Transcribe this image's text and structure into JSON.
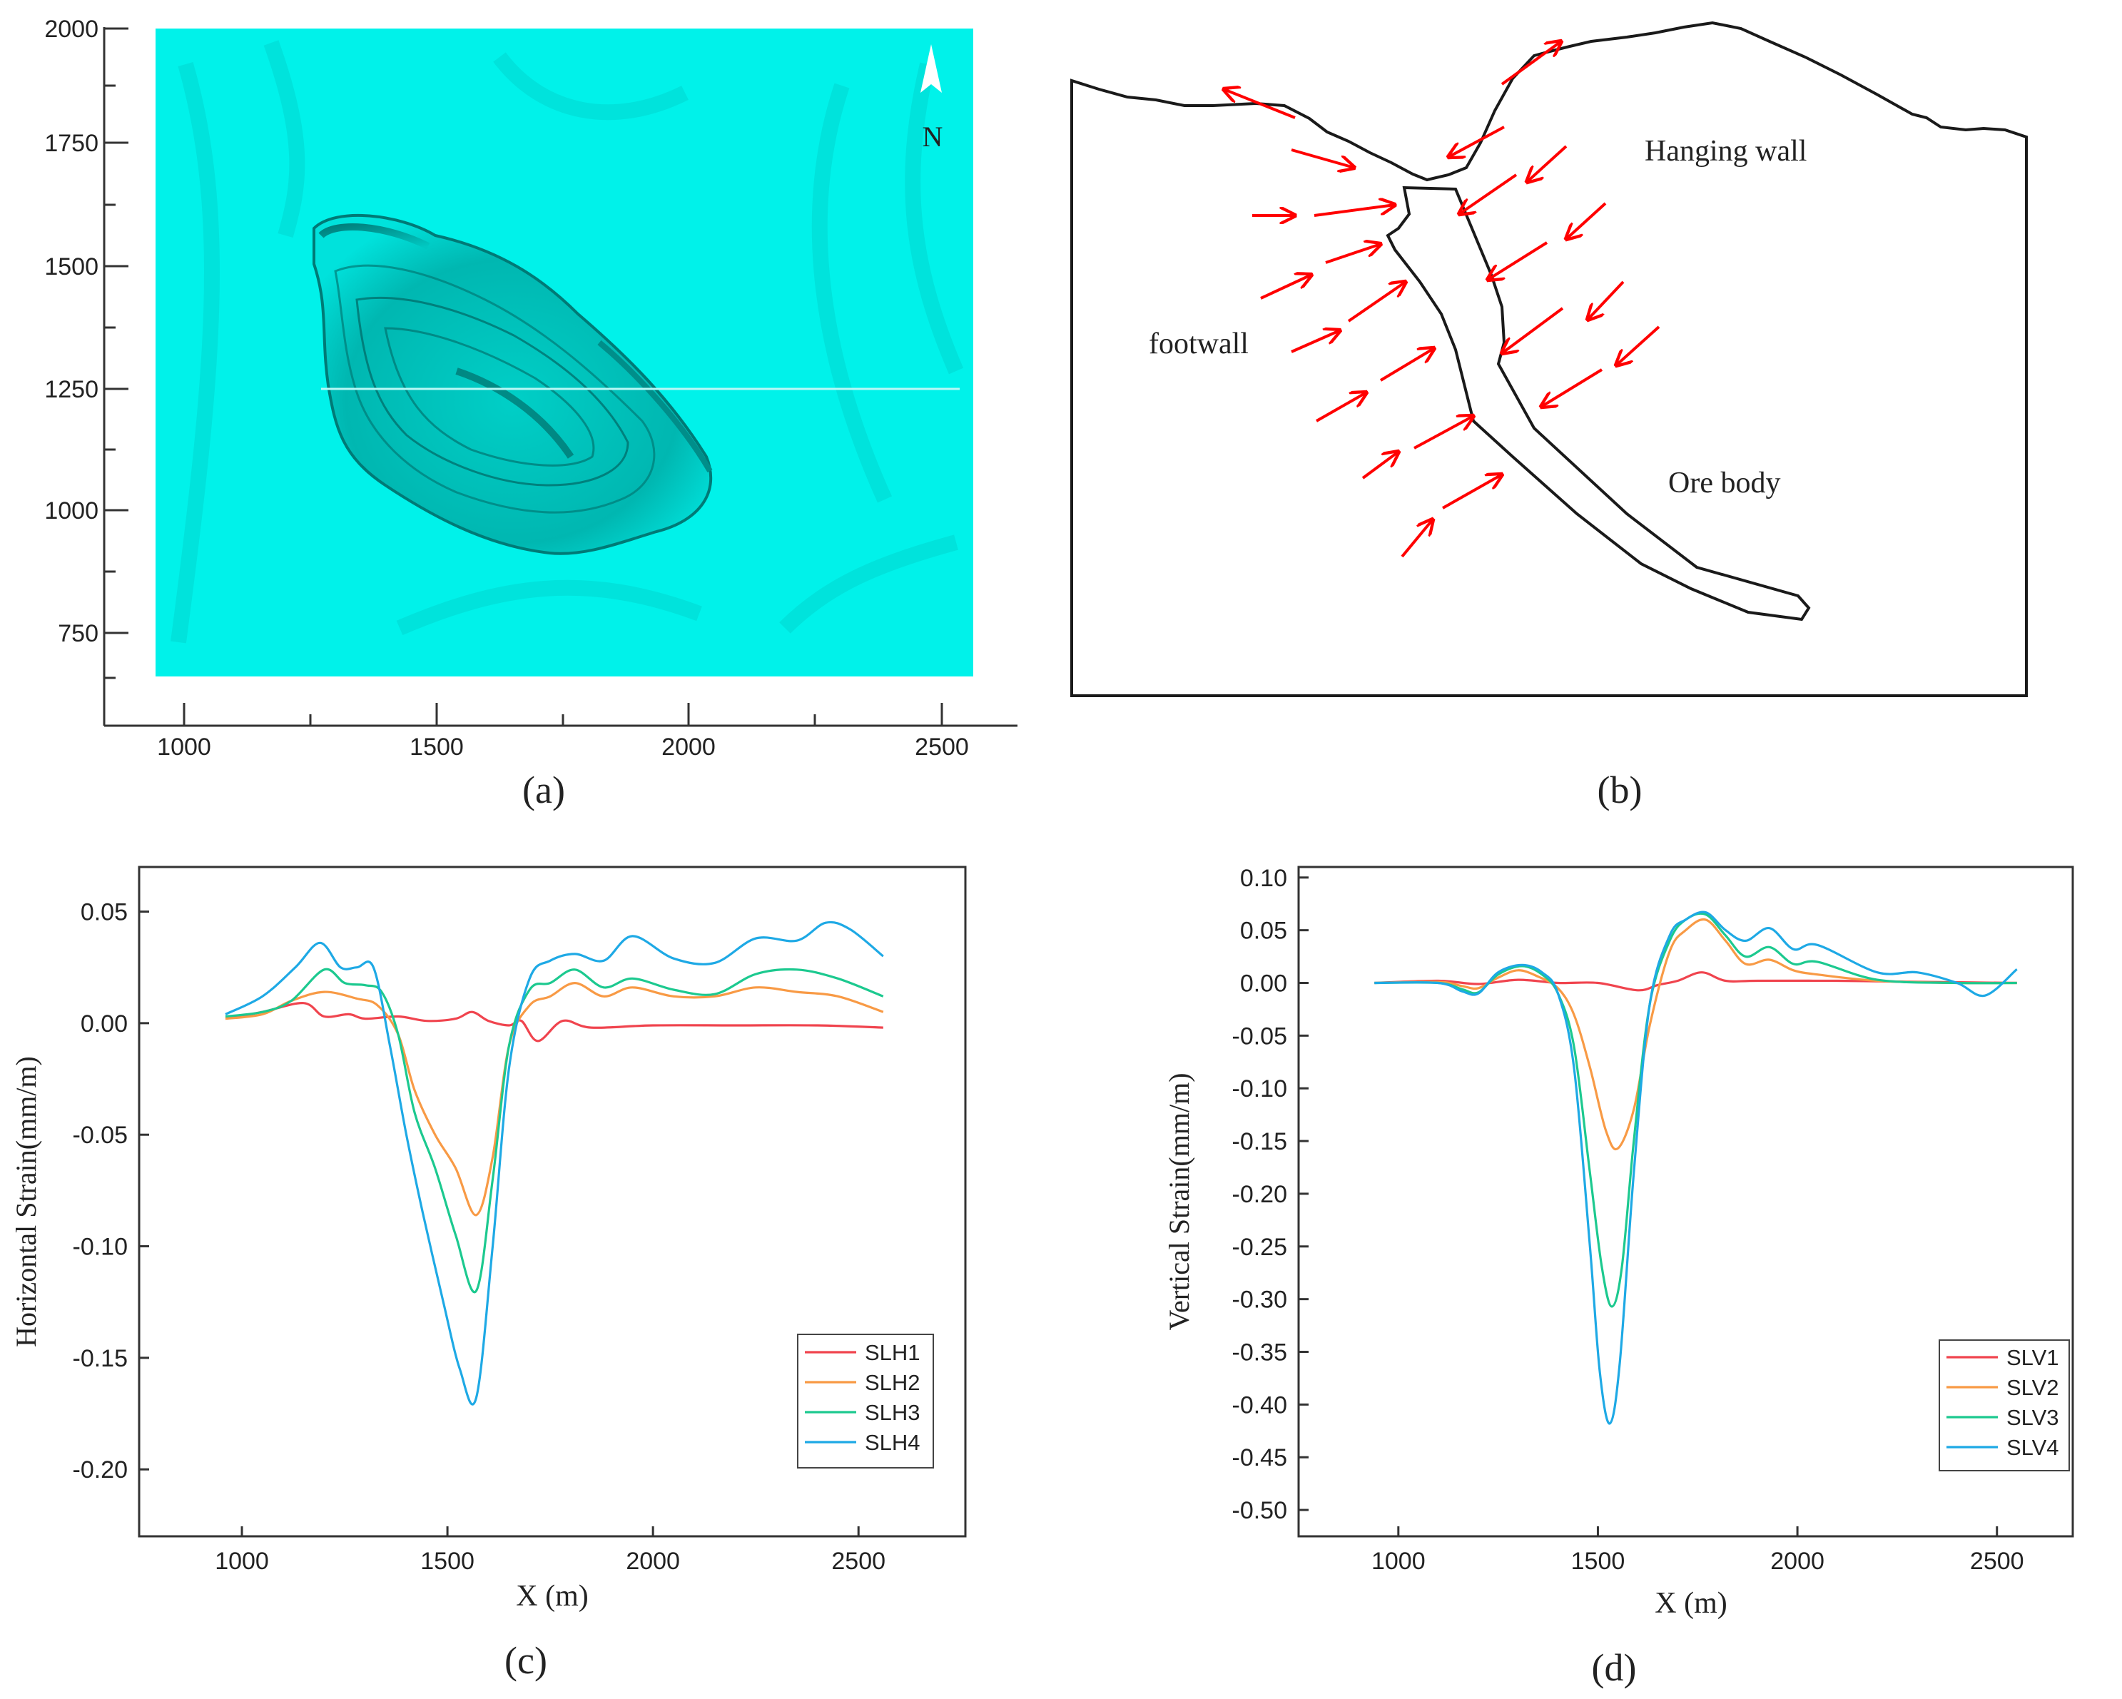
{
  "panels": {
    "a": {
      "caption": "(a)",
      "north_label": "N",
      "xticks": [
        "1000",
        "1500",
        "2000",
        "2500"
      ],
      "yticks": [
        "2000",
        "1750",
        "1500",
        "1250",
        "1000",
        "750"
      ],
      "terrain_color": "#00f2ea"
    },
    "b": {
      "caption": "(b)",
      "labels": {
        "hanging_wall": "Hanging wall",
        "footwall": "footwall",
        "ore_body": "Ore body"
      },
      "arrow_color": "#ff0000"
    },
    "c": {
      "caption": "(c)"
    },
    "d": {
      "caption": "(d)"
    }
  },
  "chart_data": [
    {
      "panel": "c",
      "type": "line",
      "title": "",
      "xlabel": "X (m)",
      "ylabel": "Horizontal  Strain(mm/m)",
      "xlim": [
        750,
        2760
      ],
      "ylim": [
        -0.23,
        0.07
      ],
      "xticks": [
        1000,
        1500,
        2000,
        2500
      ],
      "yticks": [
        0.05,
        0.0,
        -0.05,
        -0.1,
        -0.15,
        -0.2
      ],
      "ytick_labels": [
        "0.05",
        "0.00",
        "-0.05",
        "-0.10",
        "-0.15",
        "-0.20"
      ],
      "legend_position": "bottom-right",
      "series": [
        {
          "name": "SLH1",
          "color": "#f0444e",
          "x": [
            960,
            1050,
            1150,
            1200,
            1260,
            1300,
            1380,
            1450,
            1520,
            1560,
            1600,
            1650,
            1680,
            1720,
            1780,
            1850,
            2000,
            2200,
            2400,
            2560
          ],
          "y": [
            0.002,
            0.005,
            0.009,
            0.003,
            0.004,
            0.002,
            0.003,
            0.001,
            0.002,
            0.005,
            0.001,
            -0.001,
            0.001,
            -0.008,
            0.001,
            -0.002,
            -0.001,
            -0.001,
            -0.001,
            -0.002
          ]
        },
        {
          "name": "SLH2",
          "color": "#f89a45",
          "x": [
            960,
            1050,
            1120,
            1200,
            1280,
            1330,
            1380,
            1420,
            1470,
            1520,
            1570,
            1610,
            1650,
            1700,
            1750,
            1810,
            1880,
            1950,
            2050,
            2150,
            2250,
            2350,
            2450,
            2560
          ],
          "y": [
            0.002,
            0.004,
            0.01,
            0.014,
            0.011,
            0.008,
            -0.005,
            -0.03,
            -0.05,
            -0.065,
            -0.086,
            -0.06,
            -0.01,
            0.008,
            0.012,
            0.018,
            0.012,
            0.016,
            0.012,
            0.012,
            0.016,
            0.014,
            0.012,
            0.005
          ]
        },
        {
          "name": "SLH3",
          "color": "#1cc98f",
          "x": [
            960,
            1050,
            1120,
            1200,
            1250,
            1300,
            1340,
            1380,
            1420,
            1470,
            1520,
            1570,
            1610,
            1650,
            1700,
            1750,
            1810,
            1880,
            1950,
            2050,
            2150,
            2250,
            2350,
            2450,
            2560
          ],
          "y": [
            0.003,
            0.005,
            0.01,
            0.024,
            0.018,
            0.017,
            0.014,
            -0.005,
            -0.04,
            -0.065,
            -0.095,
            -0.12,
            -0.07,
            -0.01,
            0.015,
            0.018,
            0.024,
            0.016,
            0.02,
            0.015,
            0.013,
            0.022,
            0.024,
            0.02,
            0.012
          ]
        },
        {
          "name": "SLH4",
          "color": "#1ea9e5",
          "x": [
            960,
            1050,
            1130,
            1190,
            1240,
            1280,
            1320,
            1360,
            1400,
            1440,
            1490,
            1530,
            1570,
            1610,
            1650,
            1700,
            1750,
            1810,
            1880,
            1950,
            2050,
            2150,
            2250,
            2350,
            2420,
            2480,
            2560
          ],
          "y": [
            0.004,
            0.012,
            0.025,
            0.036,
            0.025,
            0.025,
            0.025,
            -0.01,
            -0.05,
            -0.085,
            -0.125,
            -0.155,
            -0.168,
            -0.1,
            -0.02,
            0.02,
            0.028,
            0.031,
            0.028,
            0.039,
            0.029,
            0.027,
            0.038,
            0.037,
            0.045,
            0.042,
            0.03
          ]
        }
      ]
    },
    {
      "panel": "d",
      "type": "line",
      "title": "",
      "xlabel": "X (m)",
      "ylabel": "Vertical  Strain(mm/m)",
      "xlim": [
        750,
        2690
      ],
      "ylim": [
        -0.525,
        0.11
      ],
      "xticks": [
        1000,
        1500,
        2000,
        2500
      ],
      "yticks": [
        0.1,
        0.05,
        0.0,
        -0.05,
        -0.1,
        -0.15,
        -0.2,
        -0.25,
        -0.3,
        -0.35,
        -0.4,
        -0.45,
        -0.5
      ],
      "ytick_labels": [
        "0.10",
        "0.05",
        "0.00",
        "-0.05",
        "-0.10",
        "-0.15",
        "-0.20",
        "-0.25",
        "-0.30",
        "-0.35",
        "-0.40",
        "-0.45",
        "-0.50"
      ],
      "legend_position": "bottom-right",
      "series": [
        {
          "name": "SLV1",
          "color": "#f0444e",
          "x": [
            940,
            1100,
            1200,
            1300,
            1400,
            1500,
            1600,
            1650,
            1700,
            1760,
            1820,
            1900,
            2100,
            2300,
            2550
          ],
          "y": [
            0.0,
            0.002,
            -0.001,
            0.003,
            0.0,
            0.0,
            -0.007,
            -0.002,
            0.002,
            0.01,
            0.002,
            0.002,
            0.002,
            0.001,
            0.0
          ]
        },
        {
          "name": "SLV2",
          "color": "#f89a45",
          "x": [
            940,
            1100,
            1160,
            1200,
            1250,
            1300,
            1350,
            1400,
            1440,
            1480,
            1520,
            1550,
            1590,
            1630,
            1680,
            1720,
            1770,
            1820,
            1870,
            1930,
            1990,
            2050,
            2200,
            2400,
            2550
          ],
          "y": [
            0.0,
            0.001,
            -0.003,
            -0.005,
            0.005,
            0.012,
            0.006,
            -0.005,
            -0.03,
            -0.08,
            -0.14,
            -0.157,
            -0.12,
            -0.04,
            0.03,
            0.05,
            0.06,
            0.04,
            0.018,
            0.022,
            0.012,
            0.008,
            0.002,
            0.0,
            0.0
          ]
        },
        {
          "name": "SLV3",
          "color": "#1cc98f",
          "x": [
            940,
            1100,
            1160,
            1200,
            1250,
            1310,
            1360,
            1400,
            1440,
            1480,
            1510,
            1535,
            1560,
            1590,
            1630,
            1680,
            1720,
            1770,
            1820,
            1870,
            1930,
            1990,
            2050,
            2200,
            2400,
            2550
          ],
          "y": [
            0.0,
            0.0,
            -0.006,
            -0.009,
            0.008,
            0.016,
            0.008,
            -0.01,
            -0.06,
            -0.18,
            -0.27,
            -0.307,
            -0.27,
            -0.15,
            -0.02,
            0.04,
            0.06,
            0.065,
            0.045,
            0.025,
            0.034,
            0.018,
            0.02,
            0.003,
            0.0,
            0.0
          ]
        },
        {
          "name": "SLV4",
          "color": "#1ea9e5",
          "x": [
            940,
            1100,
            1160,
            1200,
            1250,
            1310,
            1360,
            1400,
            1440,
            1480,
            1505,
            1530,
            1555,
            1590,
            1630,
            1680,
            1720,
            1770,
            1820,
            1870,
            1930,
            1990,
            2050,
            2200,
            2300,
            2400,
            2470,
            2550
          ],
          "y": [
            0.0,
            0.0,
            -0.008,
            -0.01,
            0.01,
            0.017,
            0.01,
            -0.01,
            -0.08,
            -0.25,
            -0.37,
            -0.418,
            -0.36,
            -0.18,
            -0.02,
            0.045,
            0.06,
            0.067,
            0.05,
            0.04,
            0.052,
            0.032,
            0.036,
            0.01,
            0.01,
            0.0,
            -0.012,
            0.013
          ]
        }
      ]
    }
  ]
}
